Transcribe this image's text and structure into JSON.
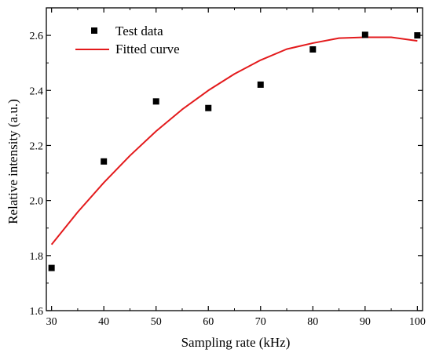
{
  "chart_data": {
    "type": "scatter",
    "xlabel": "Sampling rate (kHz)",
    "ylabel": "Relative intensity (a.u.)",
    "xlim": [
      29,
      101
    ],
    "ylim": [
      1.6,
      2.7
    ],
    "x_ticks": [
      30,
      40,
      50,
      60,
      70,
      80,
      90,
      100
    ],
    "x_tick_labels": [
      "30",
      "40",
      "50",
      "60",
      "70",
      "80",
      "90",
      "100"
    ],
    "y_ticks": [
      1.6,
      1.8,
      2.0,
      2.2,
      2.4,
      2.6
    ],
    "y_tick_labels": [
      "1.6",
      "1.8",
      "2.0",
      "2.2",
      "2.4",
      "2.6"
    ],
    "grid": false,
    "legend_position": "top-left",
    "series": [
      {
        "name": "Test data",
        "kind": "scatter",
        "marker": "square",
        "color": "#000000",
        "x": [
          30,
          40,
          50,
          60,
          70,
          80,
          90,
          100
        ],
        "y": [
          1.755,
          2.142,
          2.36,
          2.336,
          2.421,
          2.549,
          2.602,
          2.6
        ]
      },
      {
        "name": "Fitted curve",
        "kind": "line",
        "color": "#e31a1c",
        "x": [
          30,
          35,
          40,
          45,
          50,
          55,
          60,
          65,
          70,
          75,
          80,
          85,
          90,
          95,
          100
        ],
        "y": [
          1.84,
          1.958,
          2.065,
          2.163,
          2.252,
          2.331,
          2.4,
          2.46,
          2.51,
          2.55,
          2.572,
          2.59,
          2.593,
          2.593,
          2.58
        ]
      }
    ]
  }
}
